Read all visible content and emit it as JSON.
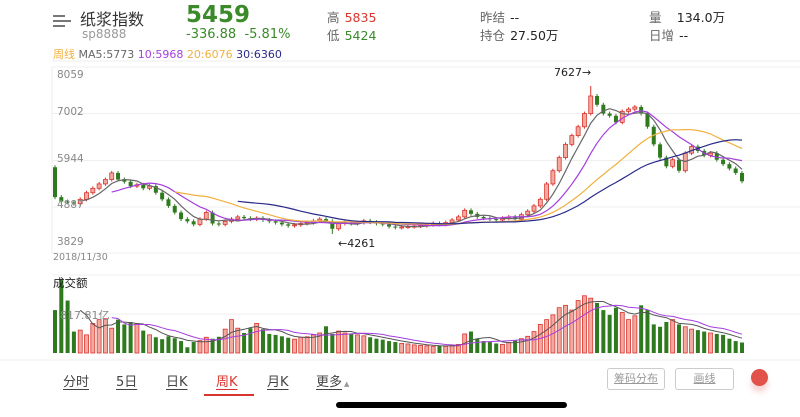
{
  "header": {
    "title": "纸浆指数",
    "code": "sp8888",
    "price": "5459",
    "change": "-336.88",
    "change_pct": "-5.81%",
    "high_label": "高",
    "high": "5835",
    "low_label": "低",
    "low": "5424",
    "prev_settle_label": "昨结",
    "prev_settle": "--",
    "open_interest_label": "持仓",
    "open_interest": "27.50万",
    "volume_label": "量",
    "volume": "134.0万",
    "daily_add_label": "日增",
    "daily_add": "--"
  },
  "ma_legend": {
    "period": "周线",
    "ma5": "MA5:5773",
    "ma10": "10:5968",
    "ma20": "20:6076",
    "ma30": "30:6360"
  },
  "colors": {
    "up": "#d8352e",
    "up_fill": "#f2aaa0",
    "down": "#2f7a1f",
    "ma5": "#666666",
    "ma10": "#a53ee0",
    "ma20": "#f0b040",
    "ma30": "#2a2a8a"
  },
  "chart_data": {
    "type": "candlestick",
    "period": "weekly",
    "start_date": "2018/11/30",
    "y_ticks": [
      "8059",
      "7002",
      "5944",
      "4887",
      "3829"
    ],
    "ylim": [
      3829,
      8059
    ],
    "first_open": 5780,
    "closes": [
      5100,
      5000,
      4980,
      4950,
      5050,
      5200,
      5300,
      5400,
      5500,
      5650,
      5500,
      5450,
      5350,
      5380,
      5300,
      5350,
      5200,
      5050,
      4900,
      4750,
      4600,
      4550,
      4480,
      4600,
      4750,
      4500,
      4480,
      4550,
      4600,
      4650,
      4620,
      4600,
      4620,
      4580,
      4550,
      4520,
      4480,
      4450,
      4470,
      4500,
      4520,
      4560,
      4600,
      4550,
      4380,
      4500,
      4520,
      4500,
      4520,
      4560,
      4530,
      4500,
      4480,
      4430,
      4410,
      4420,
      4430,
      4440,
      4450,
      4470,
      4500,
      4480,
      4520,
      4580,
      4650,
      4800,
      4720,
      4650,
      4620,
      4600,
      4580,
      4620,
      4650,
      4600,
      4700,
      4780,
      4900,
      5050,
      5400,
      5700,
      6000,
      6300,
      6500,
      6700,
      7000,
      7400,
      7200,
      7000,
      6950,
      6800,
      7050,
      7100,
      7150,
      7000,
      6700,
      6300,
      6000,
      5800,
      5950,
      5700,
      6100,
      6250,
      6150,
      6050,
      6100,
      5950,
      5850,
      5750,
      5650,
      5459
    ],
    "max_annotation": {
      "label": "7627→",
      "value": 7627,
      "index": 85
    },
    "min_annotation": {
      "label": "←4261",
      "value": 4261,
      "index": 44
    },
    "volume": {
      "title": "成交额",
      "tick_label": "817.81亿",
      "tick_value": 817.81,
      "ymax": 1635.62,
      "values": [
        900,
        1550,
        1100,
        450,
        480,
        380,
        620,
        700,
        720,
        520,
        700,
        600,
        650,
        620,
        470,
        380,
        330,
        290,
        350,
        310,
        250,
        120,
        230,
        260,
        330,
        300,
        340,
        500,
        700,
        520,
        420,
        520,
        620,
        500,
        400,
        380,
        350,
        320,
        290,
        330,
        340,
        380,
        420,
        560,
        400,
        460,
        420,
        410,
        380,
        360,
        330,
        300,
        280,
        250,
        230,
        200,
        190,
        170,
        160,
        150,
        140,
        150,
        140,
        160,
        180,
        400,
        450,
        300,
        250,
        230,
        200,
        180,
        220,
        260,
        300,
        350,
        450,
        600,
        700,
        800,
        950,
        1000,
        900,
        1100,
        1200,
        1150,
        1050,
        900,
        800,
        950,
        850,
        700,
        780,
        1000,
        900,
        600,
        550,
        650,
        700,
        600,
        550,
        500,
        480,
        450,
        420,
        400,
        380,
        300,
        250,
        220
      ]
    }
  },
  "tabs": [
    {
      "label": "分时"
    },
    {
      "label": "5日"
    },
    {
      "label": "日K"
    },
    {
      "label": "周K",
      "active": true
    },
    {
      "label": "月K"
    },
    {
      "label": "更多"
    }
  ],
  "more_arrow": "▲",
  "buttons": {
    "chips": "筹码分布",
    "draw": "画线"
  }
}
